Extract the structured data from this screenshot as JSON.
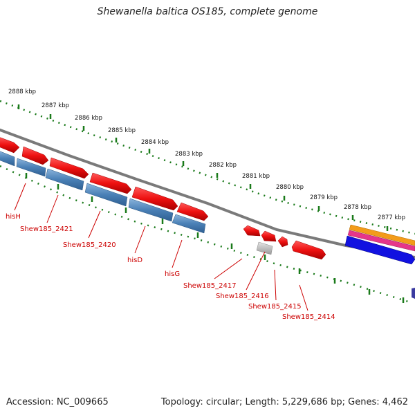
{
  "title": "Shewanella baltica OS185, complete genome",
  "footer": {
    "accession": "Accession: NC_009665",
    "topology": "Topology: circular; Length: 5,229,686 bp; Genes: 4,462"
  },
  "scale_labels": [
    "2888 kbp",
    "2887 kbp",
    "2886 kbp",
    "2885 kbp",
    "2884 kbp",
    "2883 kbp",
    "2882 kbp",
    "2881 kbp",
    "2880 kbp",
    "2879 kbp",
    "2878 kbp",
    "2877 kbp"
  ],
  "gene_labels": [
    "hisH",
    "Shew185_2421",
    "Shew185_2420",
    "hisD",
    "hisG",
    "Shew185_2417",
    "Shew185_2416",
    "Shew185_2415",
    "Shew185_2414"
  ],
  "colors": {
    "forward_cds": "#e8141c",
    "reverse_cds": "#4a7fb4",
    "pseudo": "#b0b0b0",
    "backbone": "#7a7a7a",
    "tick": "#1a7a1a",
    "label": "#cc0000",
    "track_orange": "#f39c1a",
    "track_magenta": "#e6358a",
    "track_blue": "#1111e0",
    "track_navy": "#3a3aa0"
  }
}
